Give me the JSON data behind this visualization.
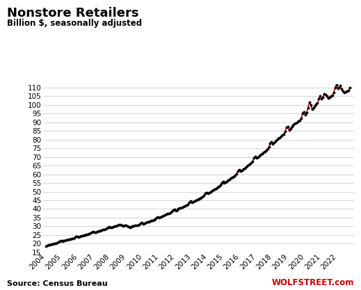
{
  "title": "Nonstore Retailers",
  "subtitle": "Billion $, seasonally adjusted",
  "source_left": "Source: Census Bureau",
  "source_right": "WOLFSTREET.com",
  "line_color": "#cc0000",
  "marker_color": "#000000",
  "background_color": "#ffffff",
  "grid_color": "#cccccc",
  "yticks": [
    15,
    20,
    25,
    30,
    35,
    40,
    45,
    50,
    55,
    60,
    65,
    70,
    75,
    80,
    85,
    90,
    95,
    100,
    105,
    110
  ],
  "ylim": [
    15,
    112
  ],
  "xlim_start": 2003.83,
  "xlim_end": 2022.99,
  "data": [
    [
      2004,
      1,
      18.5
    ],
    [
      2004,
      2,
      18.9
    ],
    [
      2004,
      3,
      19.2
    ],
    [
      2004,
      4,
      19.4
    ],
    [
      2004,
      5,
      19.7
    ],
    [
      2004,
      6,
      19.9
    ],
    [
      2004,
      7,
      20.1
    ],
    [
      2004,
      8,
      20.3
    ],
    [
      2004,
      9,
      20.5
    ],
    [
      2004,
      10,
      20.9
    ],
    [
      2004,
      11,
      21.5
    ],
    [
      2004,
      12,
      21.8
    ],
    [
      2005,
      1,
      21.3
    ],
    [
      2005,
      2,
      21.6
    ],
    [
      2005,
      3,
      21.9
    ],
    [
      2005,
      4,
      22.1
    ],
    [
      2005,
      5,
      22.3
    ],
    [
      2005,
      6,
      22.5
    ],
    [
      2005,
      7,
      22.6
    ],
    [
      2005,
      8,
      22.8
    ],
    [
      2005,
      9,
      23.0
    ],
    [
      2005,
      10,
      23.4
    ],
    [
      2005,
      11,
      24.1
    ],
    [
      2005,
      12,
      24.3
    ],
    [
      2006,
      1,
      23.8
    ],
    [
      2006,
      2,
      24.1
    ],
    [
      2006,
      3,
      24.4
    ],
    [
      2006,
      4,
      24.6
    ],
    [
      2006,
      5,
      24.9
    ],
    [
      2006,
      6,
      25.1
    ],
    [
      2006,
      7,
      25.3
    ],
    [
      2006,
      8,
      25.5
    ],
    [
      2006,
      9,
      25.7
    ],
    [
      2006,
      10,
      26.1
    ],
    [
      2006,
      11,
      26.7
    ],
    [
      2006,
      12,
      27.0
    ],
    [
      2007,
      1,
      26.4
    ],
    [
      2007,
      2,
      26.7
    ],
    [
      2007,
      3,
      27.0
    ],
    [
      2007,
      4,
      27.2
    ],
    [
      2007,
      5,
      27.5
    ],
    [
      2007,
      6,
      27.8
    ],
    [
      2007,
      7,
      28.0
    ],
    [
      2007,
      8,
      28.2
    ],
    [
      2007,
      9,
      28.4
    ],
    [
      2007,
      10,
      28.8
    ],
    [
      2007,
      11,
      29.5
    ],
    [
      2007,
      12,
      29.8
    ],
    [
      2008,
      1,
      29.2
    ],
    [
      2008,
      2,
      29.5
    ],
    [
      2008,
      3,
      29.8
    ],
    [
      2008,
      4,
      30.0
    ],
    [
      2008,
      5,
      30.3
    ],
    [
      2008,
      6,
      30.6
    ],
    [
      2008,
      7,
      30.8
    ],
    [
      2008,
      8,
      30.9
    ],
    [
      2008,
      9,
      30.7
    ],
    [
      2008,
      10,
      30.3
    ],
    [
      2008,
      11,
      30.5
    ],
    [
      2008,
      12,
      30.7
    ],
    [
      2009,
      1,
      30.2
    ],
    [
      2009,
      2,
      29.8
    ],
    [
      2009,
      3,
      29.5
    ],
    [
      2009,
      4,
      29.7
    ],
    [
      2009,
      5,
      30.0
    ],
    [
      2009,
      6,
      30.2
    ],
    [
      2009,
      7,
      30.4
    ],
    [
      2009,
      8,
      30.6
    ],
    [
      2009,
      9,
      30.7
    ],
    [
      2009,
      10,
      31.0
    ],
    [
      2009,
      11,
      31.7
    ],
    [
      2009,
      12,
      32.0
    ],
    [
      2010,
      1,
      31.4
    ],
    [
      2010,
      2,
      31.7
    ],
    [
      2010,
      3,
      32.1
    ],
    [
      2010,
      4,
      32.4
    ],
    [
      2010,
      5,
      32.7
    ],
    [
      2010,
      6,
      33.0
    ],
    [
      2010,
      7,
      33.3
    ],
    [
      2010,
      8,
      33.5
    ],
    [
      2010,
      9,
      33.8
    ],
    [
      2010,
      10,
      34.3
    ],
    [
      2010,
      11,
      35.1
    ],
    [
      2010,
      12,
      35.5
    ],
    [
      2011,
      1,
      34.9
    ],
    [
      2011,
      2,
      35.3
    ],
    [
      2011,
      3,
      35.7
    ],
    [
      2011,
      4,
      36.0
    ],
    [
      2011,
      5,
      36.4
    ],
    [
      2011,
      6,
      36.8
    ],
    [
      2011,
      7,
      37.2
    ],
    [
      2011,
      8,
      37.5
    ],
    [
      2011,
      9,
      37.8
    ],
    [
      2011,
      10,
      38.4
    ],
    [
      2011,
      11,
      39.3
    ],
    [
      2011,
      12,
      39.8
    ],
    [
      2012,
      1,
      39.1
    ],
    [
      2012,
      2,
      39.5
    ],
    [
      2012,
      3,
      40.0
    ],
    [
      2012,
      4,
      40.4
    ],
    [
      2012,
      5,
      40.7
    ],
    [
      2012,
      6,
      41.0
    ],
    [
      2012,
      7,
      41.3
    ],
    [
      2012,
      8,
      41.6
    ],
    [
      2012,
      9,
      42.0
    ],
    [
      2012,
      10,
      42.7
    ],
    [
      2012,
      11,
      43.8
    ],
    [
      2012,
      12,
      44.4
    ],
    [
      2013,
      1,
      43.7
    ],
    [
      2013,
      2,
      44.1
    ],
    [
      2013,
      3,
      44.6
    ],
    [
      2013,
      4,
      45.0
    ],
    [
      2013,
      5,
      45.5
    ],
    [
      2013,
      6,
      45.9
    ],
    [
      2013,
      7,
      46.3
    ],
    [
      2013,
      8,
      46.7
    ],
    [
      2013,
      9,
      47.1
    ],
    [
      2013,
      10,
      47.9
    ],
    [
      2013,
      11,
      49.0
    ],
    [
      2013,
      12,
      49.6
    ],
    [
      2014,
      1,
      48.9
    ],
    [
      2014,
      2,
      49.4
    ],
    [
      2014,
      3,
      50.0
    ],
    [
      2014,
      4,
      50.5
    ],
    [
      2014,
      5,
      51.0
    ],
    [
      2014,
      6,
      51.5
    ],
    [
      2014,
      7,
      52.0
    ],
    [
      2014,
      8,
      52.5
    ],
    [
      2014,
      9,
      53.0
    ],
    [
      2014,
      10,
      53.8
    ],
    [
      2014,
      11,
      55.1
    ],
    [
      2014,
      12,
      55.8
    ],
    [
      2015,
      1,
      55.0
    ],
    [
      2015,
      2,
      55.5
    ],
    [
      2015,
      3,
      56.0
    ],
    [
      2015,
      4,
      56.6
    ],
    [
      2015,
      5,
      57.2
    ],
    [
      2015,
      6,
      57.7
    ],
    [
      2015,
      7,
      58.3
    ],
    [
      2015,
      8,
      58.8
    ],
    [
      2015,
      9,
      59.4
    ],
    [
      2015,
      10,
      60.3
    ],
    [
      2015,
      11,
      61.8
    ],
    [
      2015,
      12,
      62.6
    ],
    [
      2016,
      1,
      61.7
    ],
    [
      2016,
      2,
      62.3
    ],
    [
      2016,
      3,
      62.9
    ],
    [
      2016,
      4,
      63.5
    ],
    [
      2016,
      5,
      64.1
    ],
    [
      2016,
      6,
      64.7
    ],
    [
      2016,
      7,
      65.3
    ],
    [
      2016,
      8,
      65.9
    ],
    [
      2016,
      9,
      66.5
    ],
    [
      2016,
      10,
      67.6
    ],
    [
      2016,
      11,
      69.4
    ],
    [
      2016,
      12,
      70.2
    ],
    [
      2017,
      1,
      69.3
    ],
    [
      2017,
      2,
      70.0
    ],
    [
      2017,
      3,
      70.7
    ],
    [
      2017,
      4,
      71.4
    ],
    [
      2017,
      5,
      72.0
    ],
    [
      2017,
      6,
      72.6
    ],
    [
      2017,
      7,
      73.2
    ],
    [
      2017,
      8,
      73.8
    ],
    [
      2017,
      9,
      74.5
    ],
    [
      2017,
      10,
      75.7
    ],
    [
      2017,
      11,
      77.7
    ],
    [
      2017,
      12,
      78.6
    ],
    [
      2018,
      1,
      77.5
    ],
    [
      2018,
      2,
      78.2
    ],
    [
      2018,
      3,
      79.0
    ],
    [
      2018,
      4,
      79.8
    ],
    [
      2018,
      5,
      80.5
    ],
    [
      2018,
      6,
      81.0
    ],
    [
      2018,
      7,
      81.8
    ],
    [
      2018,
      8,
      82.5
    ],
    [
      2018,
      9,
      83.0
    ],
    [
      2018,
      10,
      84.5
    ],
    [
      2018,
      11,
      87.0
    ],
    [
      2018,
      12,
      87.5
    ],
    [
      2019,
      1,
      85.5
    ],
    [
      2019,
      2,
      86.5
    ],
    [
      2019,
      3,
      87.5
    ],
    [
      2019,
      4,
      88.2
    ],
    [
      2019,
      5,
      89.0
    ],
    [
      2019,
      6,
      89.5
    ],
    [
      2019,
      7,
      90.0
    ],
    [
      2019,
      8,
      90.6
    ],
    [
      2019,
      9,
      91.2
    ],
    [
      2019,
      10,
      92.5
    ],
    [
      2019,
      11,
      95.0
    ],
    [
      2019,
      12,
      96.0
    ],
    [
      2020,
      1,
      94.5
    ],
    [
      2020,
      2,
      95.5
    ],
    [
      2020,
      3,
      98.5
    ],
    [
      2020,
      4,
      101.5
    ],
    [
      2020,
      5,
      100.0
    ],
    [
      2020,
      6,
      97.5
    ],
    [
      2020,
      7,
      98.5
    ],
    [
      2020,
      8,
      99.5
    ],
    [
      2020,
      9,
      100.2
    ],
    [
      2020,
      10,
      101.0
    ],
    [
      2020,
      11,
      103.5
    ],
    [
      2020,
      12,
      105.0
    ],
    [
      2021,
      1,
      103.5
    ],
    [
      2021,
      2,
      104.5
    ],
    [
      2021,
      3,
      106.5
    ],
    [
      2021,
      4,
      106.0
    ],
    [
      2021,
      5,
      105.0
    ],
    [
      2021,
      6,
      104.0
    ],
    [
      2021,
      7,
      104.5
    ],
    [
      2021,
      8,
      105.0
    ],
    [
      2021,
      9,
      105.5
    ],
    [
      2021,
      10,
      107.0
    ],
    [
      2021,
      11,
      110.0
    ],
    [
      2021,
      12,
      111.5
    ],
    [
      2022,
      1,
      109.5
    ],
    [
      2022,
      2,
      110.0
    ],
    [
      2022,
      3,
      111.0
    ],
    [
      2022,
      4,
      109.0
    ],
    [
      2022,
      5,
      108.0
    ],
    [
      2022,
      6,
      107.0
    ],
    [
      2022,
      7,
      107.5
    ],
    [
      2022,
      8,
      108.0
    ],
    [
      2022,
      9,
      108.5
    ],
    [
      2022,
      10,
      110.0
    ]
  ]
}
